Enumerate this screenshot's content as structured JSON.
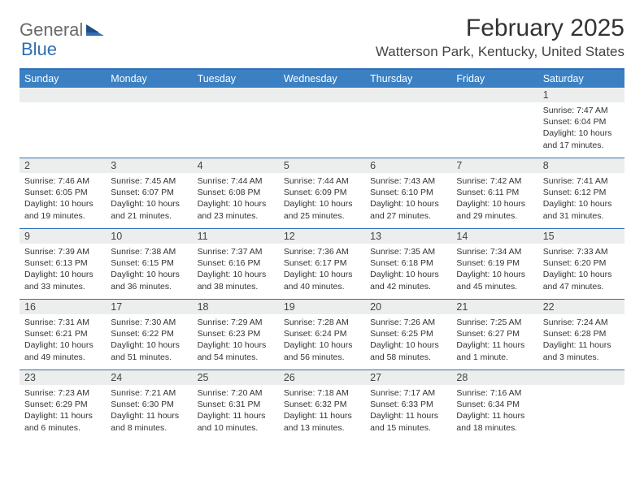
{
  "brand": {
    "part1": "General",
    "part2": "Blue"
  },
  "title": "February 2025",
  "location": "Watterson Park, Kentucky, United States",
  "colors": {
    "header_bg": "#3a80c3",
    "border": "#2e6fb5",
    "numrow_bg": "#eceded",
    "text": "#333333",
    "brand_gray": "#6a6a6a",
    "brand_blue": "#2e6fb5"
  },
  "day_headers": [
    "Sunday",
    "Monday",
    "Tuesday",
    "Wednesday",
    "Thursday",
    "Friday",
    "Saturday"
  ],
  "weeks": [
    {
      "nums": [
        "",
        "",
        "",
        "",
        "",
        "",
        "1"
      ],
      "cells": [
        null,
        null,
        null,
        null,
        null,
        null,
        {
          "sunrise": "7:47 AM",
          "sunset": "6:04 PM",
          "daylight": "10 hours and 17 minutes."
        }
      ]
    },
    {
      "nums": [
        "2",
        "3",
        "4",
        "5",
        "6",
        "7",
        "8"
      ],
      "cells": [
        {
          "sunrise": "7:46 AM",
          "sunset": "6:05 PM",
          "daylight": "10 hours and 19 minutes."
        },
        {
          "sunrise": "7:45 AM",
          "sunset": "6:07 PM",
          "daylight": "10 hours and 21 minutes."
        },
        {
          "sunrise": "7:44 AM",
          "sunset": "6:08 PM",
          "daylight": "10 hours and 23 minutes."
        },
        {
          "sunrise": "7:44 AM",
          "sunset": "6:09 PM",
          "daylight": "10 hours and 25 minutes."
        },
        {
          "sunrise": "7:43 AM",
          "sunset": "6:10 PM",
          "daylight": "10 hours and 27 minutes."
        },
        {
          "sunrise": "7:42 AM",
          "sunset": "6:11 PM",
          "daylight": "10 hours and 29 minutes."
        },
        {
          "sunrise": "7:41 AM",
          "sunset": "6:12 PM",
          "daylight": "10 hours and 31 minutes."
        }
      ]
    },
    {
      "nums": [
        "9",
        "10",
        "11",
        "12",
        "13",
        "14",
        "15"
      ],
      "cells": [
        {
          "sunrise": "7:39 AM",
          "sunset": "6:13 PM",
          "daylight": "10 hours and 33 minutes."
        },
        {
          "sunrise": "7:38 AM",
          "sunset": "6:15 PM",
          "daylight": "10 hours and 36 minutes."
        },
        {
          "sunrise": "7:37 AM",
          "sunset": "6:16 PM",
          "daylight": "10 hours and 38 minutes."
        },
        {
          "sunrise": "7:36 AM",
          "sunset": "6:17 PM",
          "daylight": "10 hours and 40 minutes."
        },
        {
          "sunrise": "7:35 AM",
          "sunset": "6:18 PM",
          "daylight": "10 hours and 42 minutes."
        },
        {
          "sunrise": "7:34 AM",
          "sunset": "6:19 PM",
          "daylight": "10 hours and 45 minutes."
        },
        {
          "sunrise": "7:33 AM",
          "sunset": "6:20 PM",
          "daylight": "10 hours and 47 minutes."
        }
      ]
    },
    {
      "nums": [
        "16",
        "17",
        "18",
        "19",
        "20",
        "21",
        "22"
      ],
      "cells": [
        {
          "sunrise": "7:31 AM",
          "sunset": "6:21 PM",
          "daylight": "10 hours and 49 minutes."
        },
        {
          "sunrise": "7:30 AM",
          "sunset": "6:22 PM",
          "daylight": "10 hours and 51 minutes."
        },
        {
          "sunrise": "7:29 AM",
          "sunset": "6:23 PM",
          "daylight": "10 hours and 54 minutes."
        },
        {
          "sunrise": "7:28 AM",
          "sunset": "6:24 PM",
          "daylight": "10 hours and 56 minutes."
        },
        {
          "sunrise": "7:26 AM",
          "sunset": "6:25 PM",
          "daylight": "10 hours and 58 minutes."
        },
        {
          "sunrise": "7:25 AM",
          "sunset": "6:27 PM",
          "daylight": "11 hours and 1 minute."
        },
        {
          "sunrise": "7:24 AM",
          "sunset": "6:28 PM",
          "daylight": "11 hours and 3 minutes."
        }
      ]
    },
    {
      "nums": [
        "23",
        "24",
        "25",
        "26",
        "27",
        "28",
        ""
      ],
      "cells": [
        {
          "sunrise": "7:23 AM",
          "sunset": "6:29 PM",
          "daylight": "11 hours and 6 minutes."
        },
        {
          "sunrise": "7:21 AM",
          "sunset": "6:30 PM",
          "daylight": "11 hours and 8 minutes."
        },
        {
          "sunrise": "7:20 AM",
          "sunset": "6:31 PM",
          "daylight": "11 hours and 10 minutes."
        },
        {
          "sunrise": "7:18 AM",
          "sunset": "6:32 PM",
          "daylight": "11 hours and 13 minutes."
        },
        {
          "sunrise": "7:17 AM",
          "sunset": "6:33 PM",
          "daylight": "11 hours and 15 minutes."
        },
        {
          "sunrise": "7:16 AM",
          "sunset": "6:34 PM",
          "daylight": "11 hours and 18 minutes."
        },
        null
      ]
    }
  ],
  "labels": {
    "sunrise": "Sunrise: ",
    "sunset": "Sunset: ",
    "daylight": "Daylight: "
  }
}
